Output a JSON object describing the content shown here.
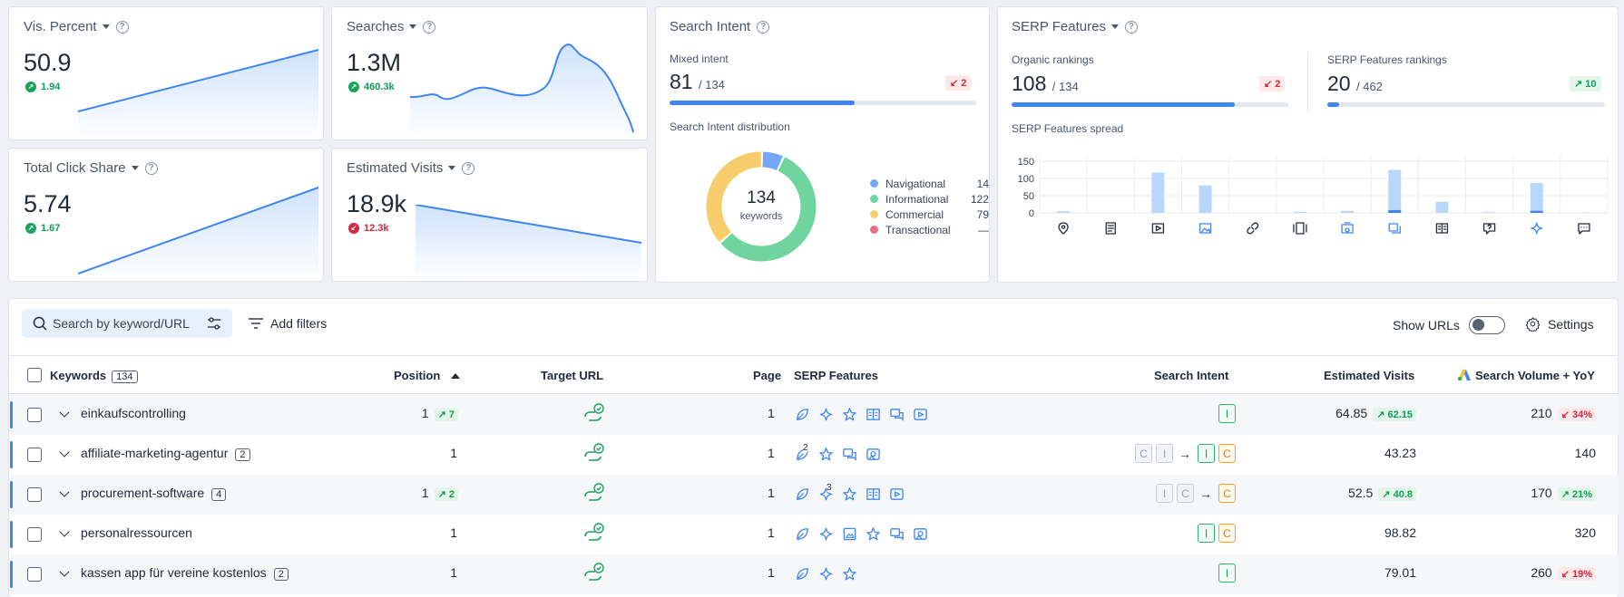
{
  "colors": {
    "accent": "#3f86f2",
    "positive": "#0f9d58",
    "negative": "#d1293d",
    "organic_share": "#b7d7fb",
    "features_share": "#3f86f2"
  },
  "vis_percent": {
    "title": "Vis. Percent",
    "value": "50.9",
    "delta": "1.94"
  },
  "searches": {
    "title": "Searches",
    "value": "1.3M",
    "delta": "460.3k"
  },
  "click_share": {
    "title": "Total Click Share",
    "value": "5.74",
    "delta": "1.67"
  },
  "est_visits_card": {
    "title": "Estimated Visits",
    "value": "18.9k",
    "delta": "12.3k"
  },
  "search_intent": {
    "title": "Search Intent",
    "mixed_label": "Mixed intent",
    "mixed_value": "81",
    "mixed_total": "/ 134",
    "mixed_change": "2",
    "mixed_progress": 0.604,
    "dist_label": "Search Intent distribution",
    "donut_total": "134",
    "donut_unit": "keywords",
    "legend": [
      {
        "label": "Navigational",
        "value": "14",
        "color": "#74a7f5"
      },
      {
        "label": "Informational",
        "value": "122",
        "color": "#6fd49e"
      },
      {
        "label": "Commercial",
        "value": "79",
        "color": "#f7cd6b"
      },
      {
        "label": "Transactional",
        "value": "—",
        "color": "#f06d84"
      }
    ]
  },
  "serp_features": {
    "title": "SERP Features",
    "organic_label": "Organic rankings",
    "organic_value": "108",
    "organic_total": "/ 134",
    "organic_change": "2",
    "organic_progress": 0.806,
    "features_label": "SERP Features rankings",
    "features_value": "20",
    "features_total": "/ 462",
    "features_change": "10",
    "features_progress": 0.043,
    "spread_label": "SERP Features spread"
  },
  "chart_data": {
    "type": "bar",
    "title": "SERP Features spread",
    "yticks": [
      "150",
      "100",
      "50",
      "0"
    ],
    "ylim": [
      0,
      150
    ],
    "categories": [
      "local-pack",
      "featured-snippet",
      "video",
      "image-pack",
      "sitelinks",
      "carousel",
      "top-stories",
      "images",
      "knowledge-panel",
      "faq",
      "ai-overview",
      "reviews"
    ],
    "series": [
      {
        "values": [
          5,
          0,
          117,
          80,
          0,
          3,
          6,
          125,
          32,
          2,
          87,
          1
        ]
      },
      {
        "values": [
          0,
          0,
          0,
          0,
          0,
          0,
          0,
          8,
          0,
          0,
          6,
          0
        ]
      }
    ]
  },
  "toolbar": {
    "search_placeholder": "Search by keyword/URL",
    "add_filters": "Add filters",
    "show_urls": "Show URLs",
    "settings": "Settings"
  },
  "table": {
    "headers": {
      "keywords": "Keywords",
      "keywords_count": "134",
      "position": "Position",
      "target_url": "Target URL",
      "page": "Page",
      "serp_features": "SERP Features",
      "search_intent": "Search Intent",
      "estimated_visits": "Estimated Visits",
      "search_volume": "Search Volume + YoY"
    },
    "rows": [
      {
        "keyword": "einkaufscontrolling",
        "badge": "",
        "position": "1",
        "pos_change": "7",
        "page": "1",
        "visits": "64.85",
        "visits_change": "62.15",
        "volume": "210",
        "yoy": "34%"
      },
      {
        "keyword": "affiliate-marketing-agentur",
        "badge": "2",
        "position": "1",
        "pos_change": "",
        "page": "1",
        "visits": "43.23",
        "visits_change": "",
        "volume": "140",
        "yoy": ""
      },
      {
        "keyword": "procurement-software",
        "badge": "4",
        "position": "1",
        "pos_change": "2",
        "page": "1",
        "visits": "52.5",
        "visits_change": "40.8",
        "volume": "170",
        "yoy": "21%"
      },
      {
        "keyword": "personalressourcen",
        "badge": "",
        "position": "1",
        "pos_change": "",
        "page": "1",
        "visits": "98.82",
        "visits_change": "",
        "volume": "320",
        "yoy": ""
      },
      {
        "keyword": "kassen app für vereine kostenlos",
        "badge": "2",
        "position": "1",
        "pos_change": "",
        "page": "1",
        "visits": "79.01",
        "visits_change": "",
        "volume": "260",
        "yoy": "19%"
      }
    ]
  }
}
